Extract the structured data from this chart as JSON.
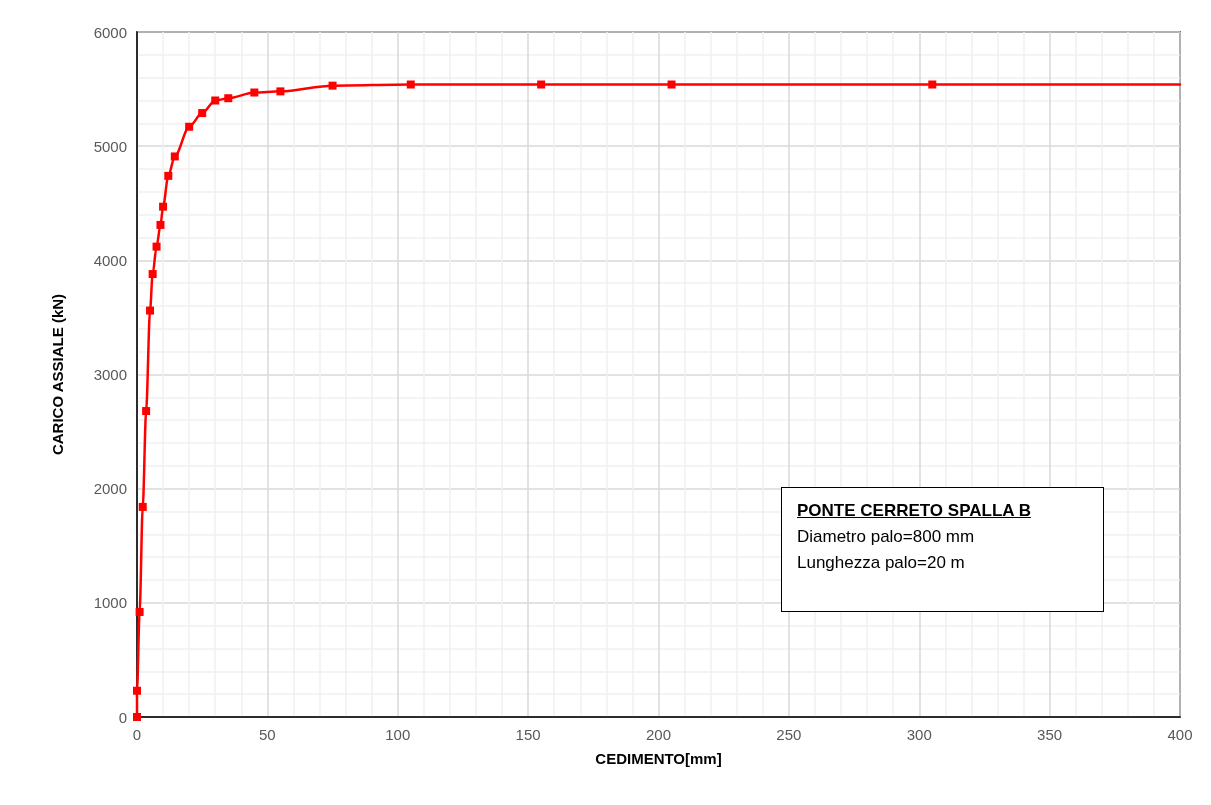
{
  "chart_data": {
    "type": "line",
    "xlabel": "CEDIMENTO[mm]",
    "ylabel": "CARICO ASSIALE (kN)",
    "xlim": [
      0,
      400
    ],
    "xticks": [
      0,
      50,
      100,
      150,
      200,
      250,
      300,
      350,
      400
    ],
    "ylim": [
      0,
      6000
    ],
    "yticks": [
      0,
      1000,
      2000,
      3000,
      4000,
      5000,
      6000
    ],
    "grid": true,
    "marker": "square",
    "line_style": "solid",
    "series": [
      {
        "color": "#ff0000",
        "x": [
          0,
          0,
          1,
          2.2,
          3.5,
          5,
          6,
          7.5,
          9,
          10,
          12,
          14.5,
          20,
          25,
          30,
          35,
          45,
          55,
          75,
          105,
          155,
          205,
          305
        ],
        "values": [
          0,
          230,
          920,
          1840,
          2680,
          3560,
          3880,
          4120,
          4310,
          4470,
          4740,
          4910,
          5170,
          5290,
          5400,
          5420,
          5470,
          5480,
          5530,
          5540,
          5540,
          5540,
          5540
        ]
      },
      {
        "color": "#ff0000",
        "marker": "none",
        "x": [
          305,
          400
        ],
        "values": [
          5540,
          5540
        ]
      }
    ],
    "annotations": [
      "PONTE CERRETO SPALLA B",
      "Diametro palo=800 mm",
      "Lunghezza palo=20 m"
    ]
  }
}
